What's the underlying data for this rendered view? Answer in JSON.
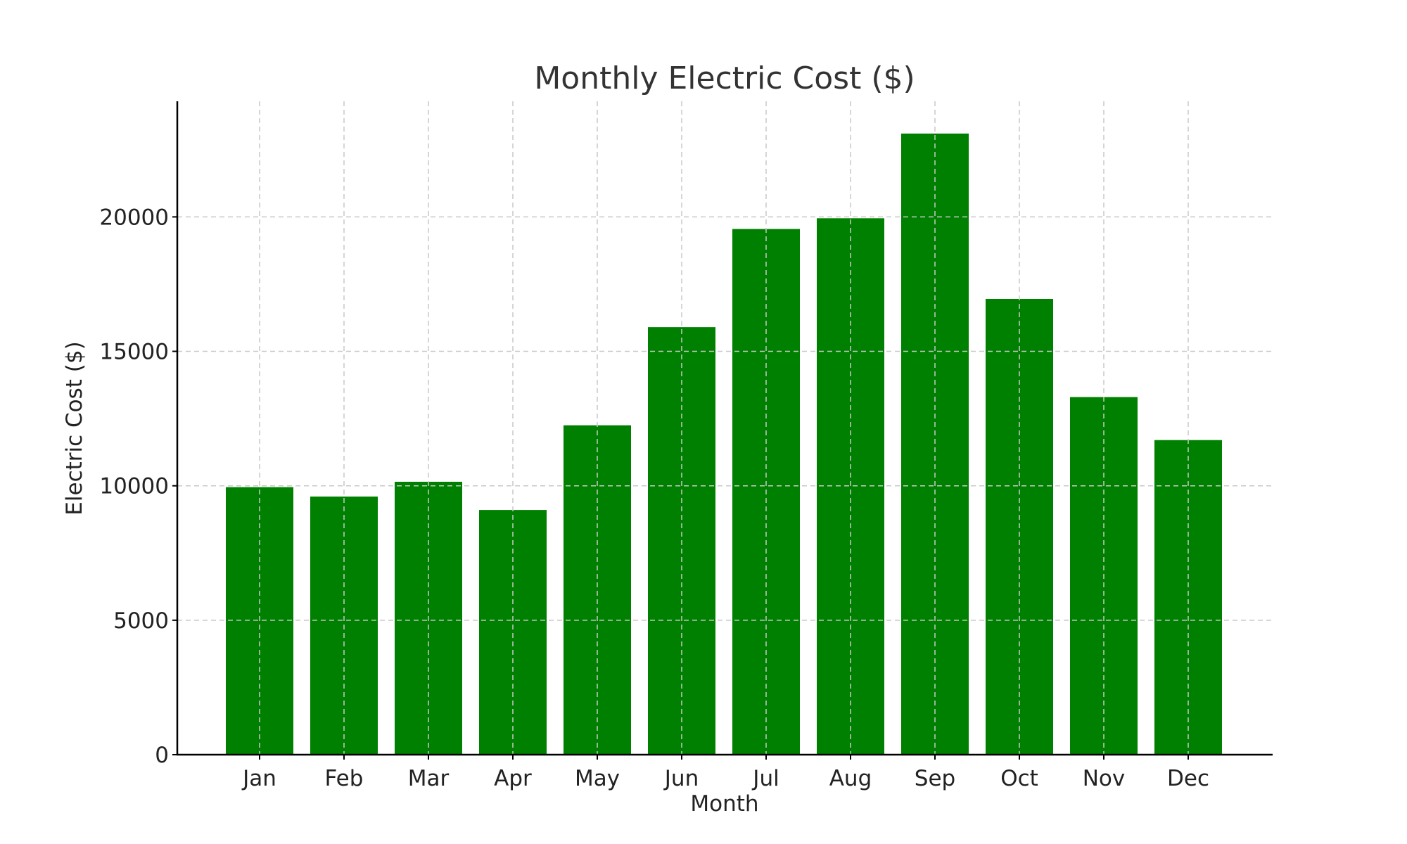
{
  "chart_data": {
    "type": "bar",
    "title": "Monthly Electric Cost ($)",
    "xlabel": "Month",
    "ylabel": "Electric Cost ($)",
    "categories": [
      "Jan",
      "Feb",
      "Mar",
      "Apr",
      "May",
      "Jun",
      "Jul",
      "Aug",
      "Sep",
      "Oct",
      "Nov",
      "Dec"
    ],
    "values": [
      9950,
      9600,
      10150,
      9100,
      12250,
      15900,
      19550,
      19950,
      23100,
      16950,
      13300,
      11700
    ],
    "ylim": [
      0,
      24300
    ],
    "yticks": [
      0,
      5000,
      10000,
      15000,
      20000
    ],
    "ytick_labels": [
      "0",
      "5000",
      "10000",
      "15000",
      "20000"
    ],
    "grid": true,
    "bar_color": "#008000"
  }
}
